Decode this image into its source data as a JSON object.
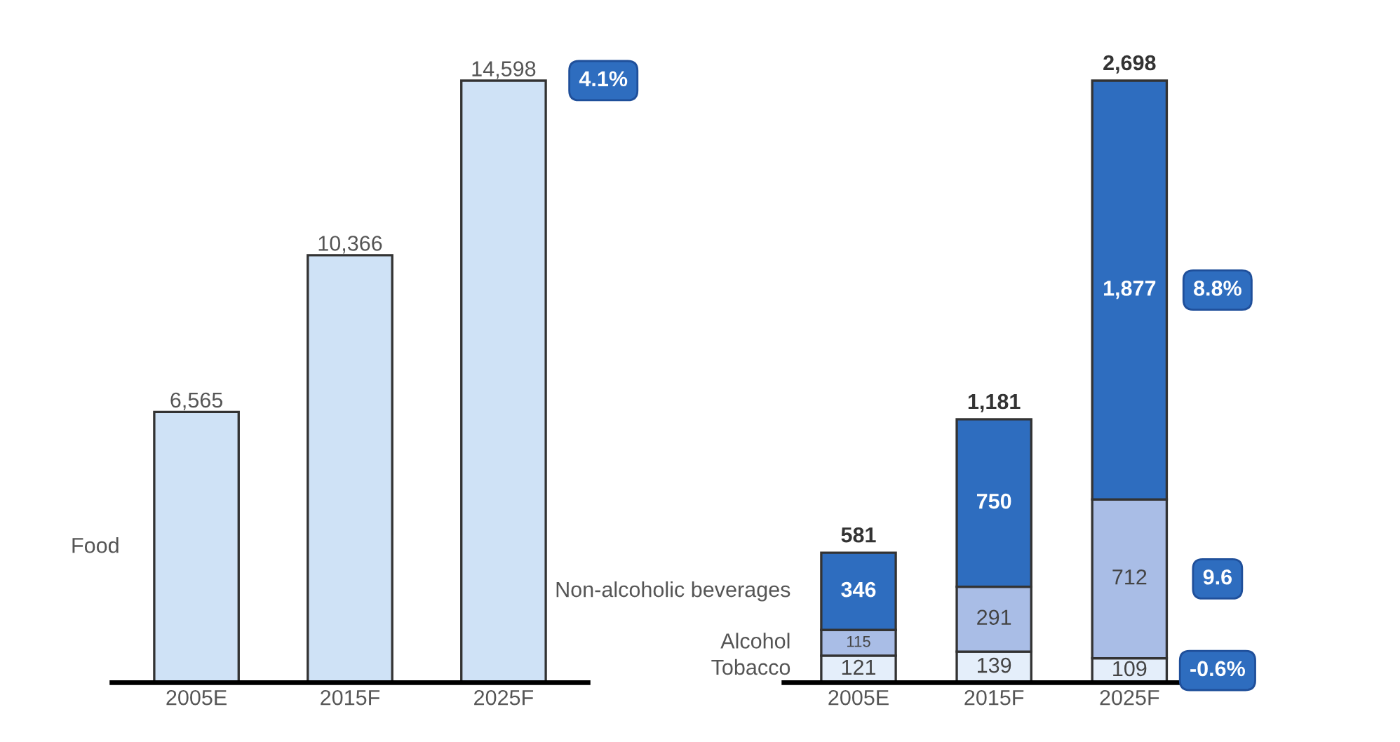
{
  "chart_data": [
    {
      "type": "bar",
      "categories": [
        "2005E",
        "2015F",
        "2025F"
      ],
      "stacked": true,
      "data_labels": true,
      "legend": false,
      "grid": false,
      "tick_labels": "x",
      "series": [
        {
          "name": "Food",
          "color": "#cfe2f6",
          "values": [
            6565,
            10366,
            14598
          ],
          "value_labels": [
            "6,565",
            "10,366",
            "14,598"
          ]
        }
      ],
      "annotations": [
        "4.1%"
      ]
    },
    {
      "type": "bar",
      "categories": [
        "2005E",
        "2015F",
        "2025F"
      ],
      "stacked": true,
      "data_labels": true,
      "legend": false,
      "grid": false,
      "tick_labels": "x",
      "series": [
        {
          "name": "Tobacco",
          "color": "#e4eefa",
          "values": [
            121,
            139,
            109
          ],
          "value_labels": [
            "121",
            "139",
            "109"
          ]
        },
        {
          "name": "Alcohol",
          "color": "#a9bde6",
          "values": [
            115,
            291,
            712
          ],
          "value_labels": [
            "115",
            "291",
            "712"
          ]
        },
        {
          "name": "Non-alcoholic beverages",
          "color": "#2e6dbf",
          "values": [
            346,
            750,
            1877
          ],
          "value_labels": [
            "346",
            "750",
            "1,877"
          ]
        }
      ],
      "totals": [
        "581",
        "1,181",
        "2,698"
      ],
      "annotations": [
        "-0.6%",
        "9.6",
        "8.8%"
      ]
    }
  ]
}
